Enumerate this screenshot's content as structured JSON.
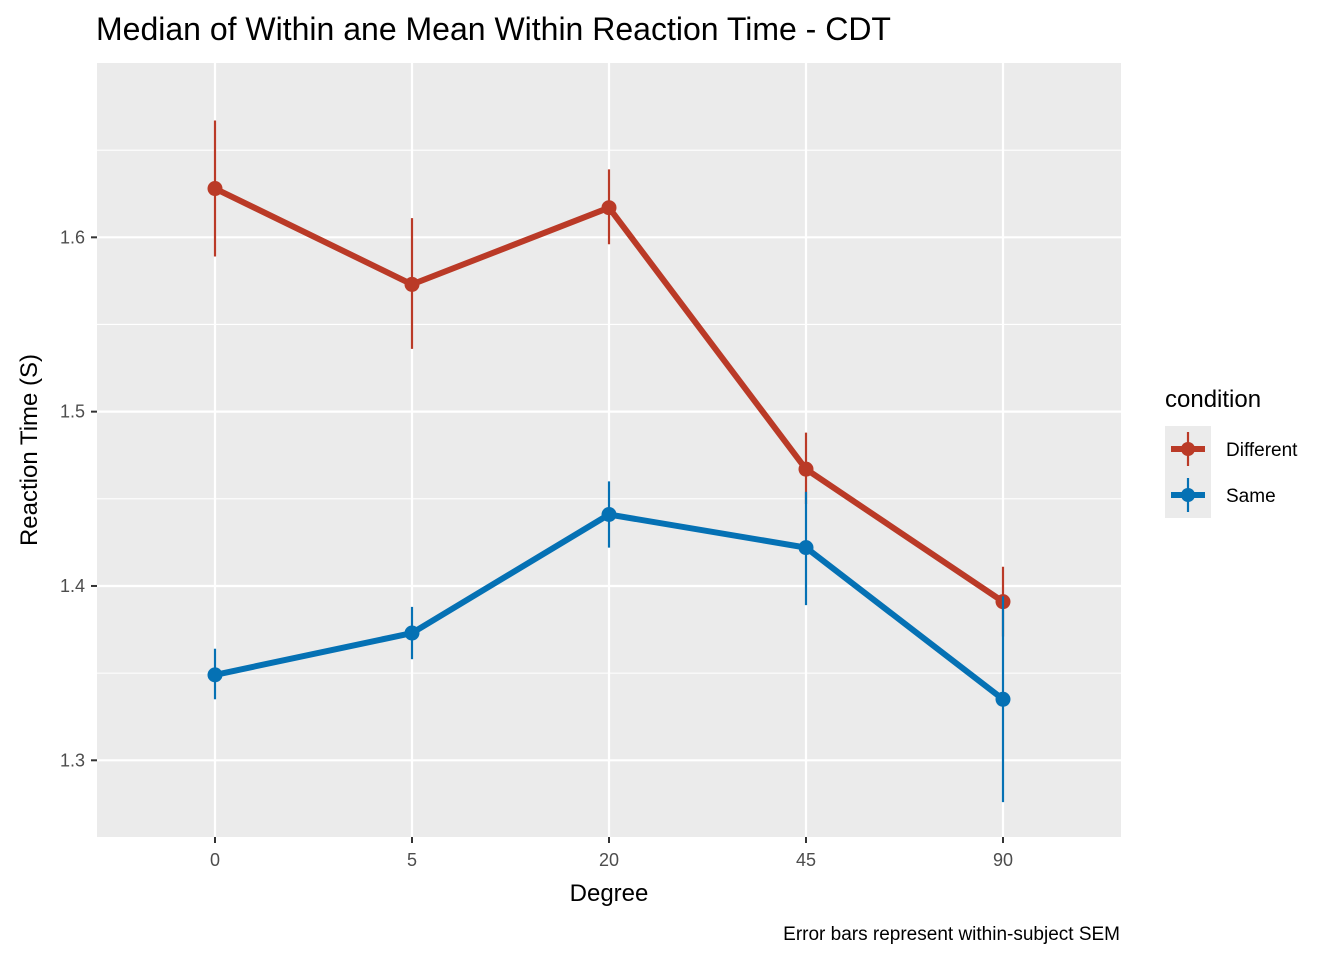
{
  "chart_data": {
    "type": "line",
    "title": "Median of Within ane Mean Within Reaction Time - CDT",
    "xlabel": "Degree",
    "ylabel": "Reaction Time (S)",
    "caption": "Error bars represent within-subject SEM",
    "categories": [
      "0",
      "5",
      "20",
      "45",
      "90"
    ],
    "ylim": [
      1.256,
      1.7
    ],
    "yticks": [
      1.3,
      1.4,
      1.5,
      1.6
    ],
    "ytick_labels": [
      "1.3",
      "1.4",
      "1.5",
      "1.6"
    ],
    "grid": true,
    "legend": {
      "title": "condition",
      "position": "right"
    },
    "series": [
      {
        "name": "Different",
        "color": "#BA3A27",
        "values": [
          1.628,
          1.573,
          1.617,
          1.467,
          1.391
        ],
        "error_low": [
          1.589,
          1.536,
          1.596,
          1.447,
          1.371
        ],
        "error_high": [
          1.667,
          1.611,
          1.639,
          1.488,
          1.411
        ]
      },
      {
        "name": "Same",
        "color": "#0571B4",
        "values": [
          1.349,
          1.373,
          1.441,
          1.422,
          1.335
        ],
        "error_low": [
          1.335,
          1.358,
          1.422,
          1.389,
          1.276
        ],
        "error_high": [
          1.364,
          1.388,
          1.46,
          1.454,
          1.394
        ]
      }
    ]
  }
}
